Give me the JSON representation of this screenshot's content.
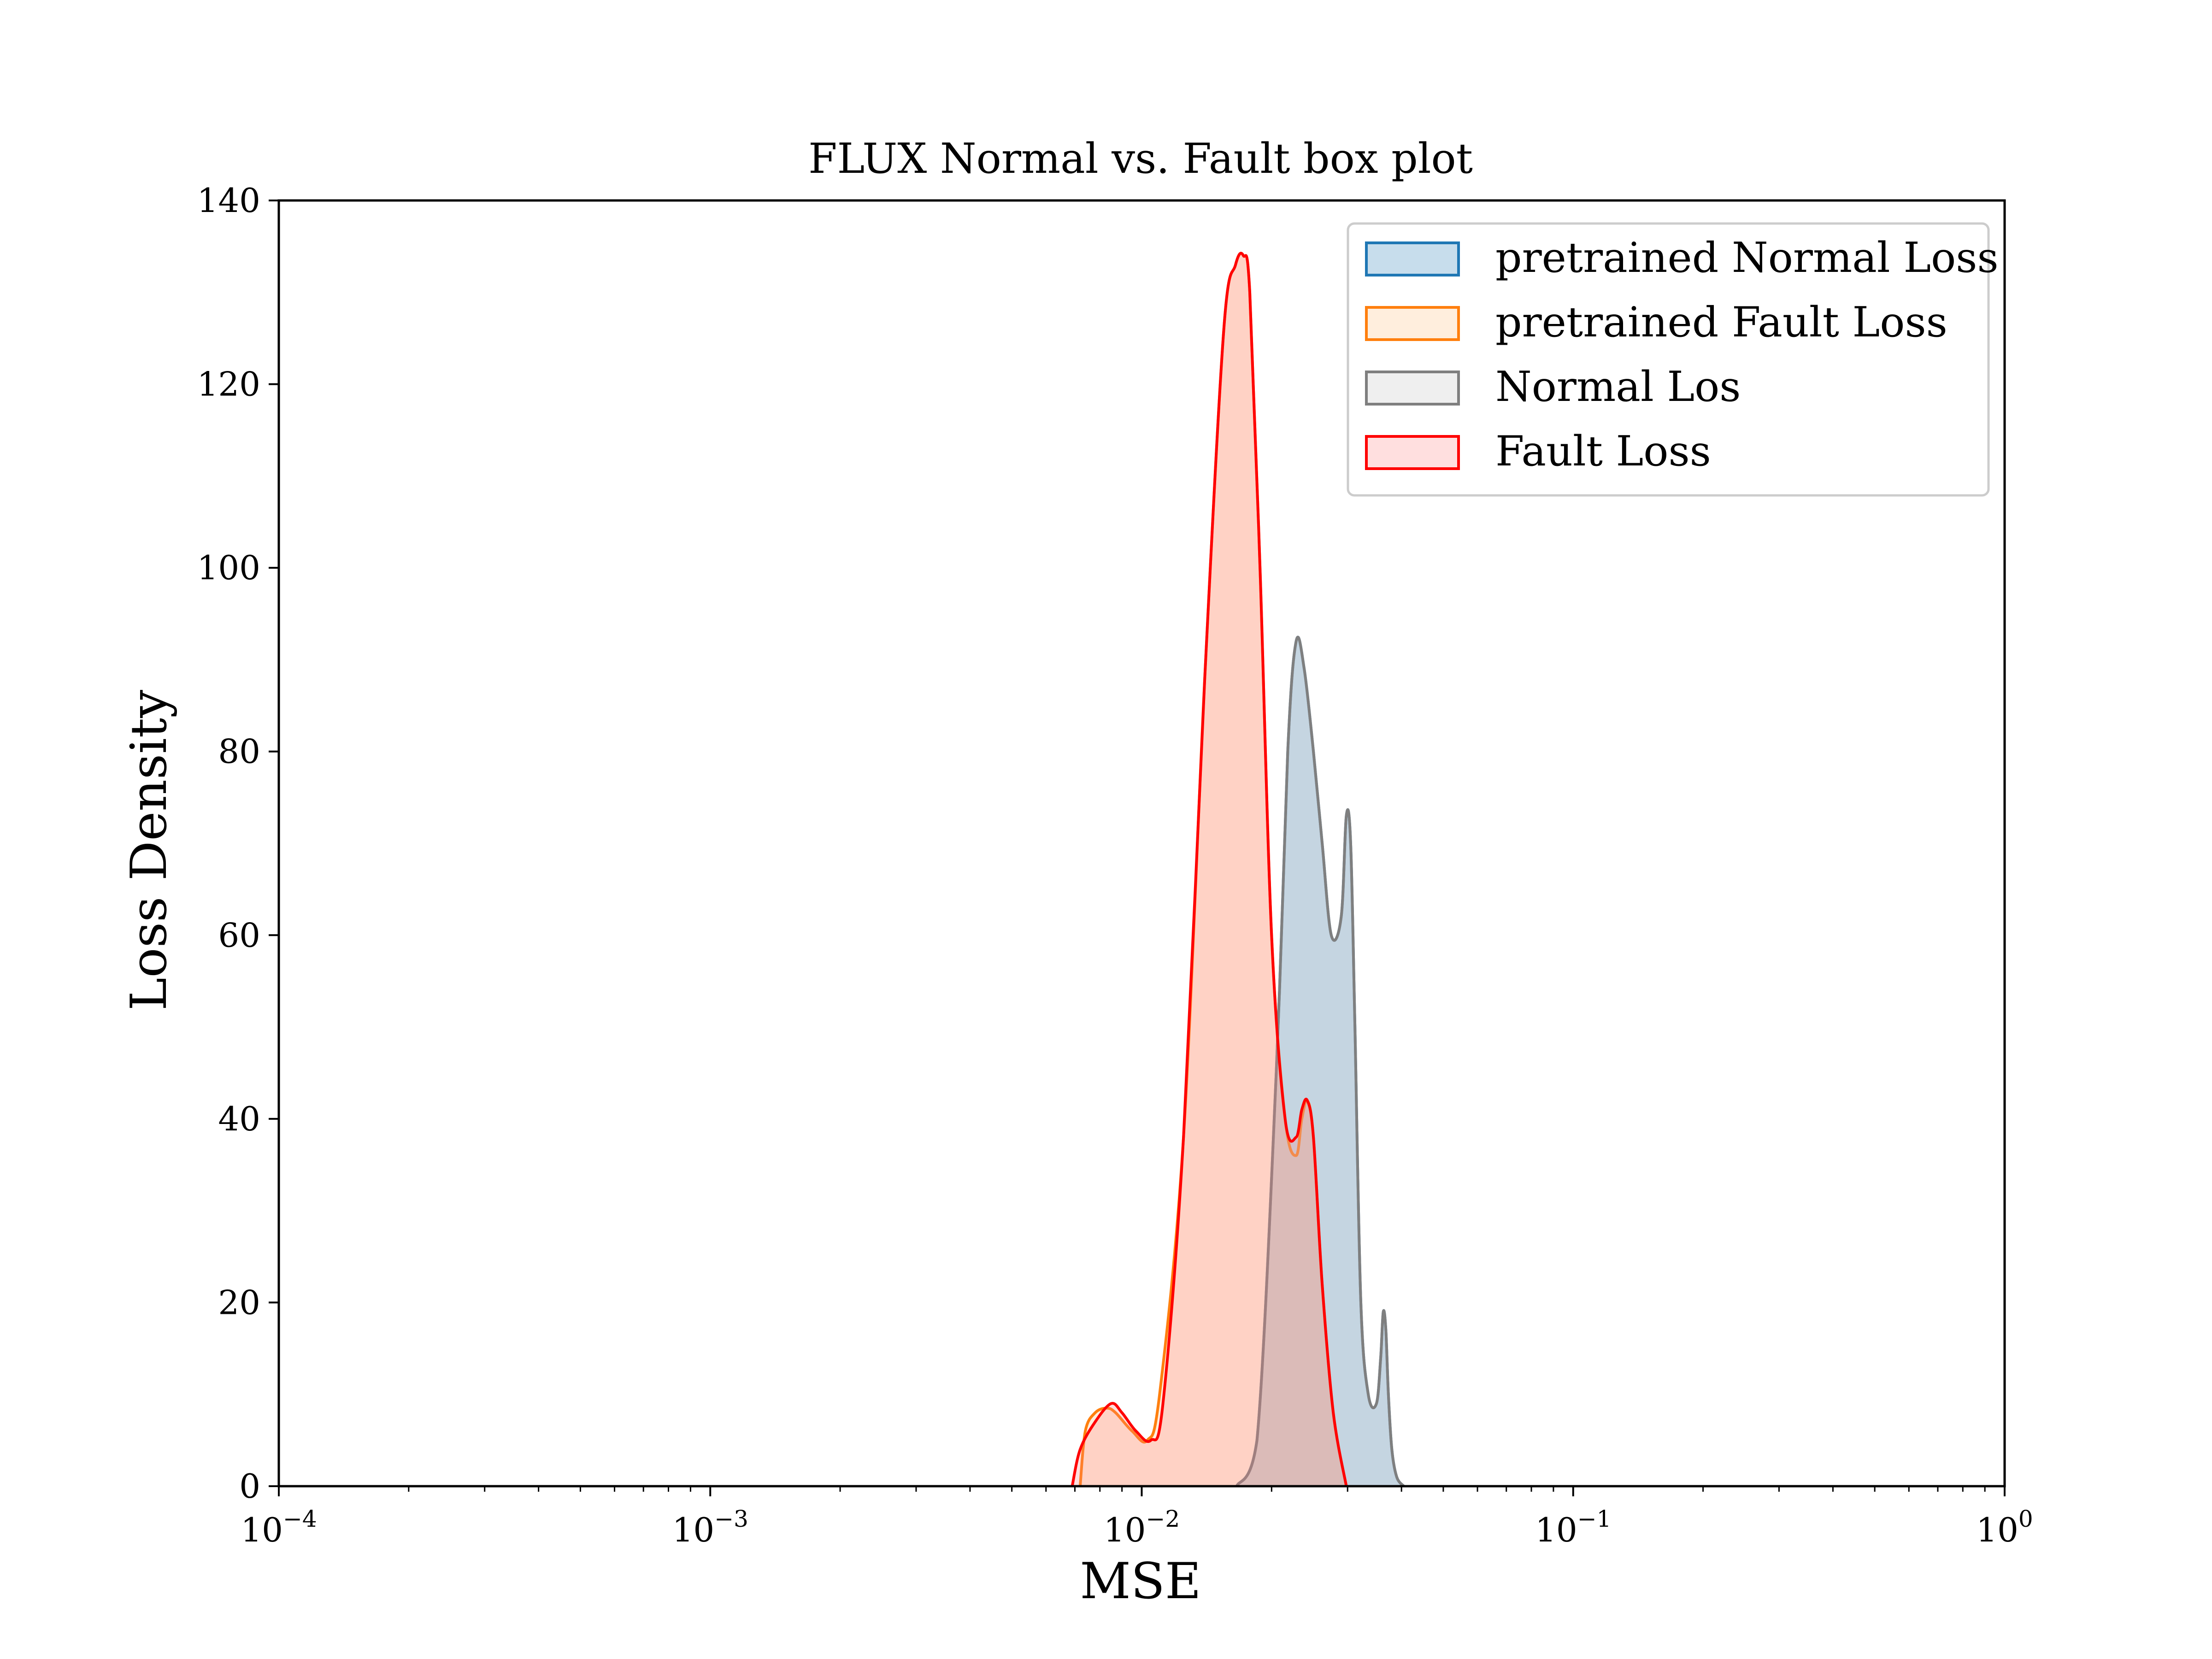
{
  "chart_data": {
    "type": "area",
    "title": "FLUX Normal vs. Fault box plot",
    "xlabel": "MSE",
    "ylabel": "Loss Density",
    "xscale": "log",
    "xlim": [
      0.0001,
      1
    ],
    "ylim": [
      0,
      140
    ],
    "x_tick_labels": [
      {
        "value": 0.0001,
        "base": "10",
        "exp": "−4"
      },
      {
        "value": 0.001,
        "base": "10",
        "exp": "−3"
      },
      {
        "value": 0.01,
        "base": "10",
        "exp": "−2"
      },
      {
        "value": 0.1,
        "base": "10",
        "exp": "−1"
      },
      {
        "value": 1,
        "base": "10",
        "exp": "0"
      }
    ],
    "y_ticks": [
      0,
      20,
      40,
      60,
      80,
      100,
      120,
      140
    ],
    "legend": "top-right",
    "series": [
      {
        "name": "pretrained Normal Loss",
        "color": "#1f77b4",
        "fill": "#1f77b4",
        "x": [
          0.0166,
          0.0185,
          0.0205,
          0.0218,
          0.0228,
          0.0238,
          0.025,
          0.0262,
          0.0275,
          0.029,
          0.0298,
          0.0305,
          0.0312,
          0.0322,
          0.0335,
          0.035,
          0.0358,
          0.0363,
          0.0368,
          0.0373,
          0.038,
          0.039,
          0.0405
        ],
        "y": [
          0,
          5,
          45,
          80,
          92,
          89,
          80,
          70,
          60,
          62,
          73,
          70,
          50,
          20,
          10,
          9,
          14,
          19,
          17,
          10,
          4,
          1,
          0
        ]
      },
      {
        "name": "pretrained Fault Loss",
        "color": "#ff7f0e",
        "fill": "#ffbb78",
        "x": [
          0.0072,
          0.0074,
          0.0078,
          0.0083,
          0.0087,
          0.0095,
          0.0103,
          0.011,
          0.0125,
          0.014,
          0.0155,
          0.0165,
          0.0172,
          0.0178,
          0.0188,
          0.02,
          0.0215,
          0.0228,
          0.0235,
          0.0242,
          0.025,
          0.0262,
          0.0278,
          0.0298
        ],
        "y": [
          0,
          6,
          8,
          8.5,
          8,
          6,
          5,
          10,
          38,
          88,
          126,
          133,
          134,
          130,
          100,
          60,
          40,
          36,
          40,
          42,
          38,
          22,
          8,
          0
        ]
      },
      {
        "name": "Normal Los",
        "color": "#7f7f7f",
        "fill": "#bfbfbf",
        "x": [
          0.0166,
          0.0185,
          0.0205,
          0.0218,
          0.0228,
          0.0238,
          0.025,
          0.0262,
          0.0275,
          0.029,
          0.0298,
          0.0305,
          0.0312,
          0.0322,
          0.0335,
          0.035,
          0.0358,
          0.0363,
          0.0368,
          0.0373,
          0.038,
          0.039,
          0.0405
        ],
        "y": [
          0,
          5,
          45,
          80,
          92,
          89,
          80,
          70,
          60,
          62,
          73,
          70,
          50,
          20,
          10,
          9,
          14,
          19,
          17,
          10,
          4,
          1,
          0
        ]
      },
      {
        "name": "Fault Loss",
        "color": "#ff0000",
        "fill": "#ff7f7f",
        "x": [
          0.0069,
          0.0072,
          0.0078,
          0.0085,
          0.009,
          0.0097,
          0.0105,
          0.0112,
          0.0125,
          0.014,
          0.0155,
          0.0165,
          0.0172,
          0.0178,
          0.0188,
          0.02,
          0.0215,
          0.0228,
          0.0235,
          0.0242,
          0.025,
          0.0262,
          0.0278,
          0.0298
        ],
        "y": [
          0,
          4,
          7,
          9,
          8,
          6,
          5,
          9,
          38,
          88,
          126,
          133,
          134,
          130,
          100,
          60,
          40,
          38,
          41,
          42,
          38,
          22,
          8,
          0
        ]
      }
    ]
  }
}
